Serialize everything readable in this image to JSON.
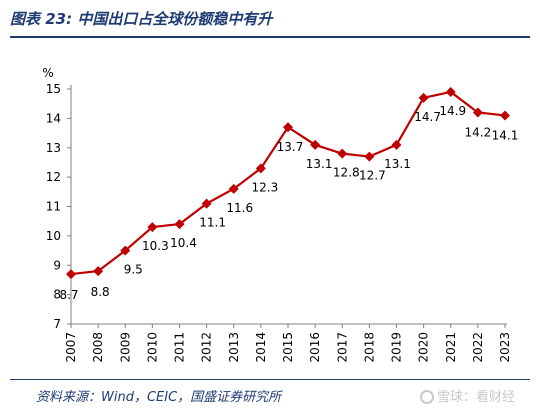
{
  "header": {
    "title": "图表 23:  中国出口占全球份额稳中有升"
  },
  "footer": {
    "source": "资料来源：Wind，CEIC，国盛证券研究所",
    "watermark": "雪球：看财经"
  },
  "colors": {
    "series": "#c00000",
    "brand": "#1f3b73"
  },
  "chart_data": {
    "type": "line",
    "title": "",
    "xlabel": "",
    "ylabel": "%",
    "ylim": [
      7,
      15
    ],
    "yticks": [
      7,
      8,
      9,
      10,
      11,
      12,
      13,
      14,
      15
    ],
    "grid": false,
    "legend": "none",
    "categories": [
      "2007",
      "2008",
      "2009",
      "2010",
      "2011",
      "2012",
      "2013",
      "2014",
      "2015",
      "2016",
      "2017",
      "2018",
      "2019",
      "2020",
      "2021",
      "2022",
      "2023"
    ],
    "series": [
      {
        "values": [
          8.7,
          8.8,
          9.5,
          10.3,
          10.4,
          11.1,
          11.6,
          12.3,
          13.7,
          13.1,
          12.8,
          12.7,
          13.1,
          14.7,
          14.9,
          14.2,
          14.1
        ],
        "labels": [
          "8.7",
          "8.8",
          "9.5",
          "10.3",
          "10.4",
          "11.1",
          "11.6",
          "12.3",
          "13.7",
          "13.1",
          "12.8",
          "12.7",
          "13.1",
          "14.7",
          "14.9",
          "14.2",
          "14.1"
        ]
      }
    ]
  }
}
